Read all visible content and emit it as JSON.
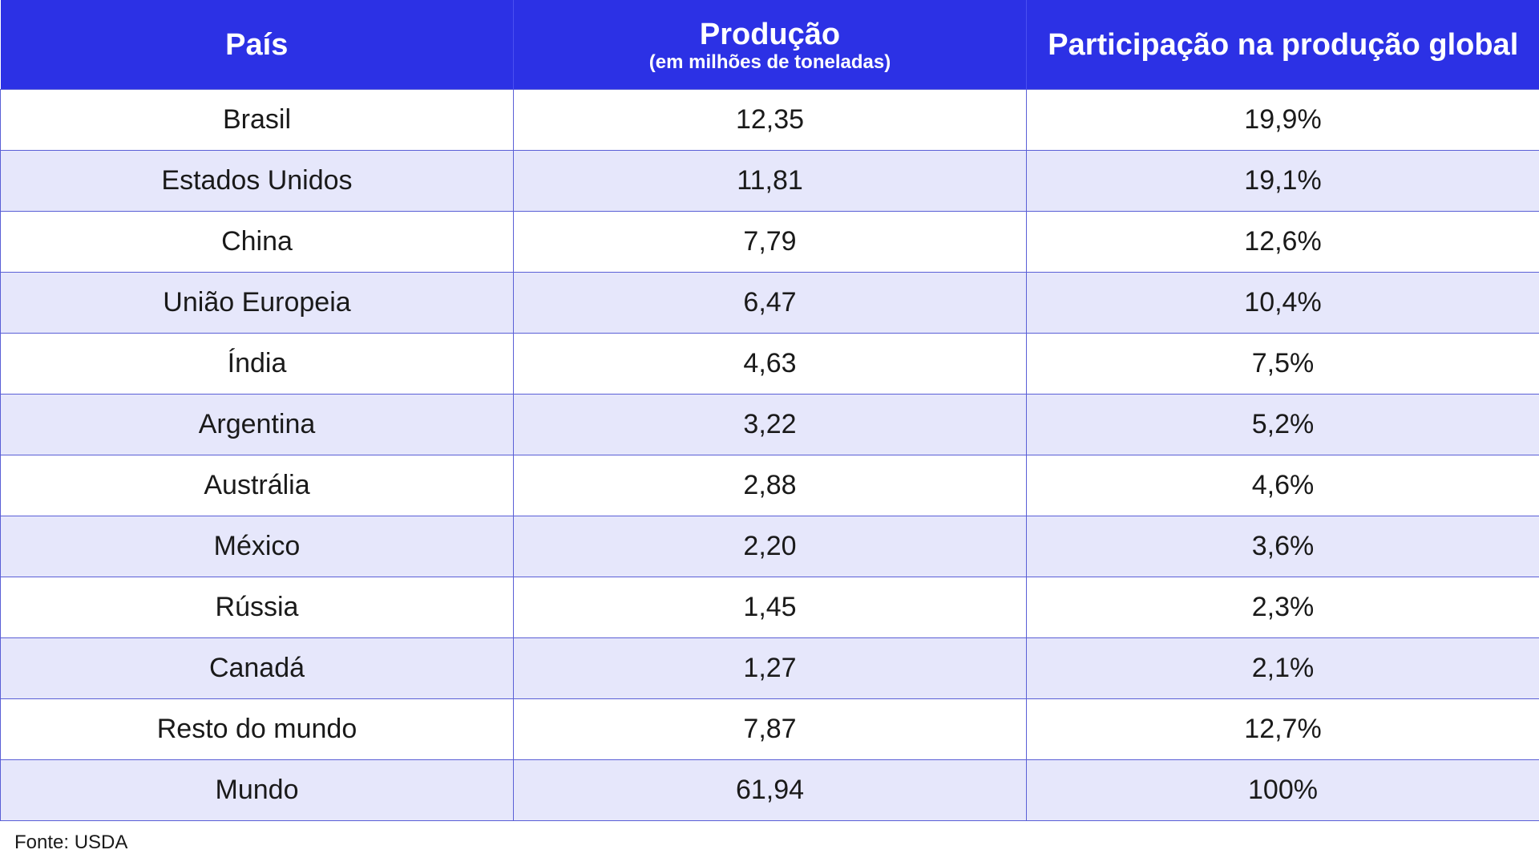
{
  "chart_data": {
    "type": "table",
    "columns": [
      {
        "label": "País",
        "sublabel": ""
      },
      {
        "label": "Produção",
        "sublabel": "(em milhões de toneladas)"
      },
      {
        "label": "Participação na produção global",
        "sublabel": ""
      }
    ],
    "rows": [
      [
        "Brasil",
        "12,35",
        "19,9%"
      ],
      [
        "Estados Unidos",
        "11,81",
        "19,1%"
      ],
      [
        "China",
        "7,79",
        "12,6%"
      ],
      [
        "União Europeia",
        "6,47",
        "10,4%"
      ],
      [
        "Índia",
        "4,63",
        "7,5%"
      ],
      [
        "Argentina",
        "3,22",
        "5,2%"
      ],
      [
        "Austrália",
        "2,88",
        "4,6%"
      ],
      [
        "México",
        "2,20",
        "3,6%"
      ],
      [
        "Rússia",
        "1,45",
        "2,3%"
      ],
      [
        "Canadá",
        "1,27",
        "2,1%"
      ],
      [
        "Resto do mundo",
        "7,87",
        "12,7%"
      ],
      [
        "Mundo",
        "61,94",
        "100%"
      ]
    ],
    "source": "Fonte: USDA"
  },
  "colors": {
    "header_bg": "#2c31e5",
    "header_text": "#ffffff",
    "stripe_bg": "#e6e7fb",
    "border": "#5a5fd6"
  }
}
